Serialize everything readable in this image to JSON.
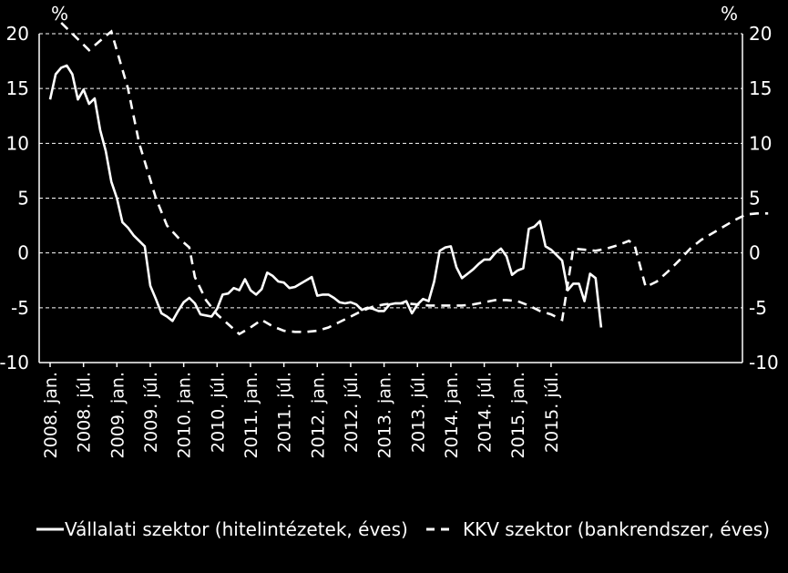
{
  "chart_data": {
    "type": "line",
    "y_left_unit": "%",
    "y_right_unit": "%",
    "ylim": [
      -10,
      20
    ],
    "yticks": [
      "20",
      "15",
      "10",
      "5",
      "0",
      "-5",
      "-10"
    ],
    "ytick_values": [
      20,
      15,
      10,
      5,
      0,
      -5,
      -10
    ],
    "x_tick_labels": [
      "2008. jan.",
      "2008. júl.",
      "2009. jan.",
      "2009. júl.",
      "2010. jan.",
      "2010. júl.",
      "2011. jan.",
      "2011. júl.",
      "2012. jan.",
      "2012. júl.",
      "2013. jan.",
      "2013. júl.",
      "2014. jan.",
      "2014. júl.",
      "2015. jan.",
      "2015. júl."
    ],
    "grid": true,
    "legend_position": "bottom",
    "colors": {
      "background": "#000000",
      "line": "#ffffff",
      "grid": "#ffffff"
    },
    "series": [
      {
        "name": "Vállalati szektor (hitelintézetek, éves)",
        "style": "solid",
        "start": "2008-01",
        "values": [
          14.0,
          16.3,
          16.9,
          17.1,
          16.3,
          14.0,
          14.9,
          13.6,
          14.1,
          11.2,
          9.3,
          6.5,
          5.0,
          2.8,
          2.3,
          1.6,
          1.1,
          0.6,
          -3.0,
          -4.2,
          -5.5,
          -5.8,
          -6.2,
          -5.3,
          -4.5,
          -4.1,
          -4.6,
          -5.6,
          -5.7,
          -5.8,
          -5.1,
          -3.8,
          -3.7,
          -3.2,
          -3.4,
          -2.4,
          -3.4,
          -3.8,
          -3.3,
          -1.8,
          -2.1,
          -2.6,
          -2.7,
          -3.2,
          -3.1,
          -2.8,
          -2.5,
          -2.2,
          -3.9,
          -3.8,
          -3.8,
          -4.1,
          -4.5,
          -4.6,
          -4.5,
          -4.7,
          -5.2,
          -5.0,
          -5.1,
          -5.3,
          -5.3,
          -4.7,
          -4.6,
          -4.6,
          -4.4,
          -5.5,
          -4.7,
          -4.2,
          -4.4,
          -2.6,
          0.2,
          0.5,
          0.6,
          -1.3,
          -2.3,
          -1.9,
          -1.5,
          -1.0,
          -0.6,
          -0.6,
          0.0,
          0.4,
          -0.3,
          -2.0,
          -1.6,
          -1.4,
          2.2,
          2.4,
          2.9,
          0.6,
          0.3,
          -0.2,
          -0.7,
          -3.4,
          -2.8,
          -2.8,
          -4.4,
          -1.9,
          -2.3,
          -6.8
        ]
      },
      {
        "name": "KKV szektor (bankrendszer, éves)",
        "style": "dashed",
        "start": "2008-03",
        "end": "2015-12",
        "points": [
          [
            0,
            21.0
          ],
          [
            3,
            19.5
          ],
          [
            5,
            18.5
          ],
          [
            8,
            19.8
          ],
          [
            9,
            20.2
          ],
          [
            12,
            15.0
          ],
          [
            14,
            10.0
          ],
          [
            17,
            5.0
          ],
          [
            19,
            2.5
          ],
          [
            21,
            1.4
          ],
          [
            23,
            0.5
          ],
          [
            24,
            -2.2
          ],
          [
            26,
            -4.3
          ],
          [
            28,
            -5.6
          ],
          [
            30,
            -6.5
          ],
          [
            32,
            -7.4
          ],
          [
            34,
            -6.8
          ],
          [
            36,
            -6.1
          ],
          [
            38,
            -6.7
          ],
          [
            40,
            -7.1
          ],
          [
            42,
            -7.2
          ],
          [
            44,
            -7.2
          ],
          [
            46,
            -7.1
          ],
          [
            48,
            -6.8
          ],
          [
            50,
            -6.3
          ],
          [
            52,
            -5.8
          ],
          [
            54,
            -5.3
          ],
          [
            56,
            -4.9
          ],
          [
            58,
            -4.7
          ],
          [
            60,
            -4.6
          ],
          [
            62,
            -4.6
          ],
          [
            64,
            -4.7
          ],
          [
            66,
            -4.8
          ],
          [
            68,
            -4.8
          ],
          [
            70,
            -4.8
          ],
          [
            72,
            -4.8
          ],
          [
            74,
            -4.7
          ],
          [
            76,
            -4.5
          ],
          [
            78,
            -4.3
          ],
          [
            80,
            -4.3
          ],
          [
            82,
            -4.4
          ],
          [
            84,
            -4.8
          ],
          [
            86,
            -5.3
          ],
          [
            88,
            -5.6
          ],
          [
            90,
            -6.1
          ],
          [
            92,
            0.4
          ],
          [
            94,
            0.3
          ],
          [
            96,
            0.2
          ],
          [
            98,
            0.4
          ],
          [
            100,
            0.7
          ],
          [
            102,
            1.1
          ],
          [
            103,
            0.7
          ],
          [
            105,
            -3.1
          ],
          [
            107,
            -2.6
          ],
          [
            109,
            -1.7
          ],
          [
            111,
            -0.7
          ],
          [
            113,
            0.4
          ],
          [
            115,
            1.2
          ],
          [
            117,
            1.8
          ],
          [
            119,
            2.4
          ],
          [
            121,
            3.0
          ],
          [
            123,
            3.5
          ],
          [
            125,
            3.6
          ],
          [
            127,
            3.6
          ]
        ]
      }
    ]
  }
}
